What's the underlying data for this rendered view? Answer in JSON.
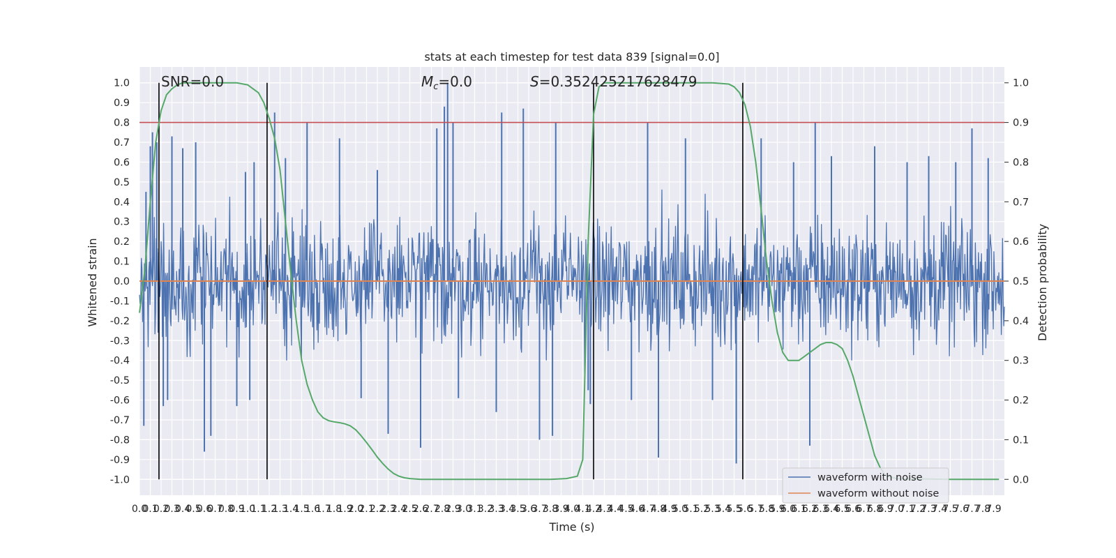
{
  "chart_data": {
    "type": "line",
    "title": "stats at each timestep for test data 839 [signal=0.0]",
    "xlabel": "Time (s)",
    "ylabel_left": "Whitened strain",
    "ylabel_right": "Detection probability",
    "xlim": [
      0.0,
      8.0
    ],
    "ylim_left": [
      -1.08,
      1.08
    ],
    "ylim_right": [
      -0.04,
      1.04
    ],
    "x_ticks": [
      "0.0",
      "0.1",
      "0.2",
      "0.3",
      "0.4",
      "0.5",
      "0.6",
      "0.7",
      "0.8",
      "0.9",
      "1.0",
      "1.1",
      "1.2",
      "1.3",
      "1.4",
      "1.5",
      "1.6",
      "1.7",
      "1.8",
      "1.9",
      "2.0",
      "2.1",
      "2.2",
      "2.3",
      "2.4",
      "2.5",
      "2.6",
      "2.7",
      "2.8",
      "2.9",
      "3.0",
      "3.1",
      "3.2",
      "3.3",
      "3.4",
      "3.5",
      "3.6",
      "3.7",
      "3.8",
      "3.9",
      "4.0",
      "4.1",
      "4.2",
      "4.3",
      "4.4",
      "4.5",
      "4.6",
      "4.7",
      "4.8",
      "4.9",
      "5.0",
      "5.1",
      "5.2",
      "5.3",
      "5.4",
      "5.5",
      "5.6",
      "5.7",
      "5.8",
      "5.9",
      "6.0",
      "6.1",
      "6.2",
      "6.3",
      "6.4",
      "6.5",
      "6.6",
      "6.7",
      "6.8",
      "6.9",
      "7.0",
      "7.1",
      "7.2",
      "7.3",
      "7.4",
      "7.5",
      "7.6",
      "7.7",
      "7.8",
      "7.9"
    ],
    "y_ticks_left": [
      "-1.0",
      "-0.9",
      "-0.8",
      "-0.7",
      "-0.6",
      "-0.5",
      "-0.4",
      "-0.3",
      "-0.2",
      "-0.1",
      "0.0",
      "0.1",
      "0.2",
      "0.3",
      "0.4",
      "0.5",
      "0.6",
      "0.7",
      "0.8",
      "0.9",
      "1.0"
    ],
    "y_ticks_right": [
      "0.0",
      "0.1",
      "0.2",
      "0.3",
      "0.4",
      "0.5",
      "0.6",
      "0.7",
      "0.8",
      "0.9",
      "1.0"
    ],
    "grid": true,
    "legend_position": "lower-right",
    "annotations": {
      "snr": "SNR=0.0",
      "mc_symbol": "M",
      "mc_sub": "c",
      "mc_value": "=0.0",
      "s_symbol": "S",
      "s_value": "=0.352425217628479"
    },
    "threshold_right": 0.9,
    "vertical_lines_x": [
      0.18,
      1.18,
      4.2,
      5.58
    ],
    "series": [
      {
        "name": "waveform with noise",
        "color": "#4c72b0",
        "kind": "noise",
        "x_range": [
          0.0,
          8.0
        ],
        "typical_range": [
          -0.45,
          0.45
        ],
        "spikes": [
          {
            "x": 0.04,
            "y": -0.73
          },
          {
            "x": 0.06,
            "y": 0.45
          },
          {
            "x": 0.1,
            "y": 0.68
          },
          {
            "x": 0.12,
            "y": 0.75
          },
          {
            "x": 0.16,
            "y": 0.7
          },
          {
            "x": 0.22,
            "y": -0.63
          },
          {
            "x": 0.26,
            "y": -0.6
          },
          {
            "x": 0.3,
            "y": 0.73
          },
          {
            "x": 0.4,
            "y": 0.67
          },
          {
            "x": 0.52,
            "y": 0.7
          },
          {
            "x": 0.6,
            "y": -0.86
          },
          {
            "x": 0.66,
            "y": -0.78
          },
          {
            "x": 0.9,
            "y": -0.63
          },
          {
            "x": 0.98,
            "y": 0.55
          },
          {
            "x": 1.02,
            "y": -0.6
          },
          {
            "x": 1.06,
            "y": 0.6
          },
          {
            "x": 1.25,
            "y": 0.85
          },
          {
            "x": 1.35,
            "y": 0.62
          },
          {
            "x": 1.55,
            "y": 0.8
          },
          {
            "x": 1.85,
            "y": 0.72
          },
          {
            "x": 2.05,
            "y": -0.59
          },
          {
            "x": 2.2,
            "y": 0.56
          },
          {
            "x": 2.3,
            "y": -0.77
          },
          {
            "x": 2.6,
            "y": -0.84
          },
          {
            "x": 2.75,
            "y": 0.77
          },
          {
            "x": 2.82,
            "y": 0.88
          },
          {
            "x": 2.85,
            "y": 1.0
          },
          {
            "x": 2.9,
            "y": 0.8
          },
          {
            "x": 2.95,
            "y": -0.59
          },
          {
            "x": 3.3,
            "y": -0.66
          },
          {
            "x": 3.35,
            "y": 0.85
          },
          {
            "x": 3.55,
            "y": 0.87
          },
          {
            "x": 3.7,
            "y": -0.8
          },
          {
            "x": 3.82,
            "y": -0.78
          },
          {
            "x": 3.85,
            "y": 0.8
          },
          {
            "x": 4.15,
            "y": -0.55
          },
          {
            "x": 4.17,
            "y": -0.62
          },
          {
            "x": 4.55,
            "y": -0.6
          },
          {
            "x": 4.7,
            "y": 0.8
          },
          {
            "x": 4.8,
            "y": -0.89
          },
          {
            "x": 5.05,
            "y": 0.72
          },
          {
            "x": 5.3,
            "y": -0.6
          },
          {
            "x": 5.52,
            "y": -0.92
          },
          {
            "x": 5.75,
            "y": 0.72
          },
          {
            "x": 6.05,
            "y": 0.6
          },
          {
            "x": 6.2,
            "y": -0.83
          },
          {
            "x": 6.25,
            "y": 0.8
          },
          {
            "x": 6.4,
            "y": 0.63
          },
          {
            "x": 6.8,
            "y": 0.68
          },
          {
            "x": 7.1,
            "y": 0.6
          },
          {
            "x": 7.3,
            "y": 0.63
          },
          {
            "x": 7.55,
            "y": 0.6
          },
          {
            "x": 7.7,
            "y": 0.77
          },
          {
            "x": 7.85,
            "y": 0.62
          }
        ]
      },
      {
        "name": "waveform without noise",
        "color": "#dd8452",
        "axis": "left",
        "x": [
          0.0,
          8.0
        ],
        "y": [
          0.0,
          0.0
        ]
      },
      {
        "name": "Detection probability",
        "color": "#55a868",
        "axis": "right",
        "x": [
          0.0,
          0.05,
          0.1,
          0.15,
          0.2,
          0.25,
          0.3,
          0.35,
          0.4,
          0.45,
          0.5,
          0.6,
          0.7,
          0.8,
          0.9,
          1.0,
          1.05,
          1.1,
          1.15,
          1.2,
          1.25,
          1.3,
          1.35,
          1.4,
          1.45,
          1.5,
          1.55,
          1.6,
          1.65,
          1.7,
          1.75,
          1.8,
          1.85,
          1.9,
          1.95,
          2.0,
          2.05,
          2.1,
          2.15,
          2.2,
          2.25,
          2.3,
          2.35,
          2.4,
          2.45,
          2.5,
          2.6,
          2.7,
          2.8,
          3.0,
          3.5,
          3.8,
          3.95,
          4.05,
          4.1,
          4.15,
          4.2,
          4.25,
          4.3,
          4.35,
          4.4,
          4.5,
          4.7,
          5.0,
          5.3,
          5.45,
          5.5,
          5.55,
          5.6,
          5.65,
          5.7,
          5.75,
          5.8,
          5.85,
          5.9,
          5.95,
          6.0,
          6.05,
          6.1,
          6.15,
          6.2,
          6.25,
          6.3,
          6.35,
          6.4,
          6.45,
          6.5,
          6.55,
          6.6,
          6.65,
          6.7,
          6.75,
          6.8,
          6.85,
          6.9,
          7.0,
          7.5,
          7.95
        ],
        "y": [
          0.42,
          0.53,
          0.7,
          0.85,
          0.93,
          0.97,
          0.985,
          0.995,
          1.0,
          1.0,
          1.0,
          1.0,
          1.0,
          1.0,
          1.0,
          0.995,
          0.985,
          0.975,
          0.95,
          0.91,
          0.86,
          0.78,
          0.65,
          0.52,
          0.4,
          0.3,
          0.24,
          0.2,
          0.17,
          0.155,
          0.148,
          0.145,
          0.143,
          0.14,
          0.135,
          0.125,
          0.11,
          0.093,
          0.075,
          0.056,
          0.04,
          0.026,
          0.015,
          0.008,
          0.004,
          0.002,
          0.0,
          0.0,
          0.0,
          0.0,
          0.0,
          0.0,
          0.002,
          0.008,
          0.05,
          0.6,
          0.92,
          0.99,
          1.0,
          1.0,
          1.0,
          1.0,
          1.0,
          1.0,
          1.0,
          0.997,
          0.99,
          0.975,
          0.945,
          0.89,
          0.8,
          0.68,
          0.55,
          0.45,
          0.37,
          0.32,
          0.3,
          0.3,
          0.3,
          0.31,
          0.32,
          0.33,
          0.34,
          0.345,
          0.345,
          0.34,
          0.33,
          0.3,
          0.26,
          0.21,
          0.16,
          0.11,
          0.06,
          0.03,
          0.01,
          0.002,
          0.0,
          0.0
        ]
      }
    ]
  }
}
